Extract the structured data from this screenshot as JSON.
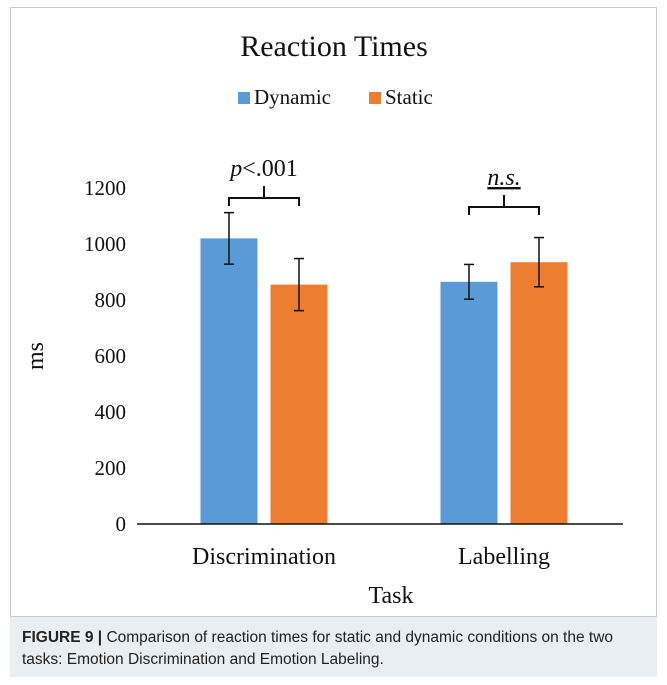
{
  "figure": {
    "caption_label": "FIGURE 9 |",
    "caption_text": " Comparison of reaction times for static and dynamic conditions on the two tasks: Emotion Discrimination and Emotion Labeling."
  },
  "chart_data": {
    "type": "bar",
    "title": "Reaction Times",
    "xlabel": "Task",
    "ylabel": "ms",
    "categories": [
      "Discrimination",
      "Labelling"
    ],
    "series": [
      {
        "name": "Dynamic",
        "color": "#5b9bd5",
        "values": [
          1020,
          865
        ],
        "error": [
          92,
          62
        ]
      },
      {
        "name": "Static",
        "color": "#ed7d31",
        "values": [
          855,
          935
        ],
        "error": [
          93,
          88
        ]
      }
    ],
    "ylim": [
      0,
      1200
    ],
    "yticks": [
      0,
      200,
      400,
      600,
      800,
      1000,
      1200
    ],
    "grid": false,
    "legend_position": "top-center",
    "annotations": [
      {
        "category": "Discrimination",
        "label": "p<.001",
        "label_italic_part": "p",
        "label_rest": "<.001"
      },
      {
        "category": "Labelling",
        "label": "n.s.",
        "label_italic_part": "n.s.",
        "label_rest": "",
        "underline": true
      }
    ]
  }
}
